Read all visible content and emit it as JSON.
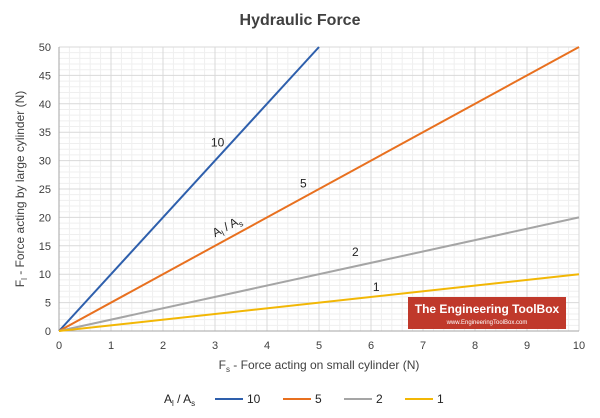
{
  "chart_data": {
    "type": "line",
    "title": "Hydraulic Force",
    "xlabel": {
      "main": "F",
      "sub": "s",
      "rest": " - Force acting on small cylinder (N)"
    },
    "ylabel": {
      "main": "F",
      "sub": "l",
      "rest": " - Force acting by large cylinder (N)"
    },
    "xlim": [
      0,
      10
    ],
    "ylim": [
      0,
      50
    ],
    "x_ticks": [
      "0",
      "1",
      "2",
      "3",
      "4",
      "5",
      "6",
      "7",
      "8",
      "9",
      "10"
    ],
    "y_ticks": [
      "0",
      "5",
      "10",
      "15",
      "20",
      "25",
      "30",
      "35",
      "40",
      "45",
      "50"
    ],
    "grid": true,
    "legend_position": "bottom",
    "legend_title": {
      "a": "A",
      "a_sub": "l",
      "slash": " / ",
      "b": "A",
      "b_sub": "s"
    },
    "series": [
      {
        "name": "10",
        "color": "#2e5fac",
        "x": [
          0,
          5
        ],
        "y": [
          0,
          50
        ]
      },
      {
        "name": "5",
        "color": "#e8701f",
        "x": [
          0,
          10
        ],
        "y": [
          0,
          50
        ]
      },
      {
        "name": "2",
        "color": "#a5a5a5",
        "x": [
          0,
          10
        ],
        "y": [
          0,
          20
        ]
      },
      {
        "name": "1",
        "color": "#f2b705",
        "x": [
          0,
          10
        ],
        "y": [
          0,
          10
        ]
      }
    ],
    "annotations": [
      {
        "text": "10",
        "x": 3.05,
        "y": 32.5
      },
      {
        "text": "5",
        "x": 4.7,
        "y": 25.3
      },
      {
        "text": "2",
        "x": 5.7,
        "y": 13.2
      },
      {
        "text": "1",
        "x": 6.1,
        "y": 7.0
      }
    ],
    "ratio_annotation": {
      "a": "A",
      "a_sub": "l",
      "slash": " / ",
      "b": "A",
      "b_sub": "s",
      "x": 3.0,
      "y": 16.5
    }
  },
  "watermark": {
    "name": "The Engineering ToolBox",
    "url": "www.EngineeringToolBox.com",
    "color": "#c0392b"
  }
}
